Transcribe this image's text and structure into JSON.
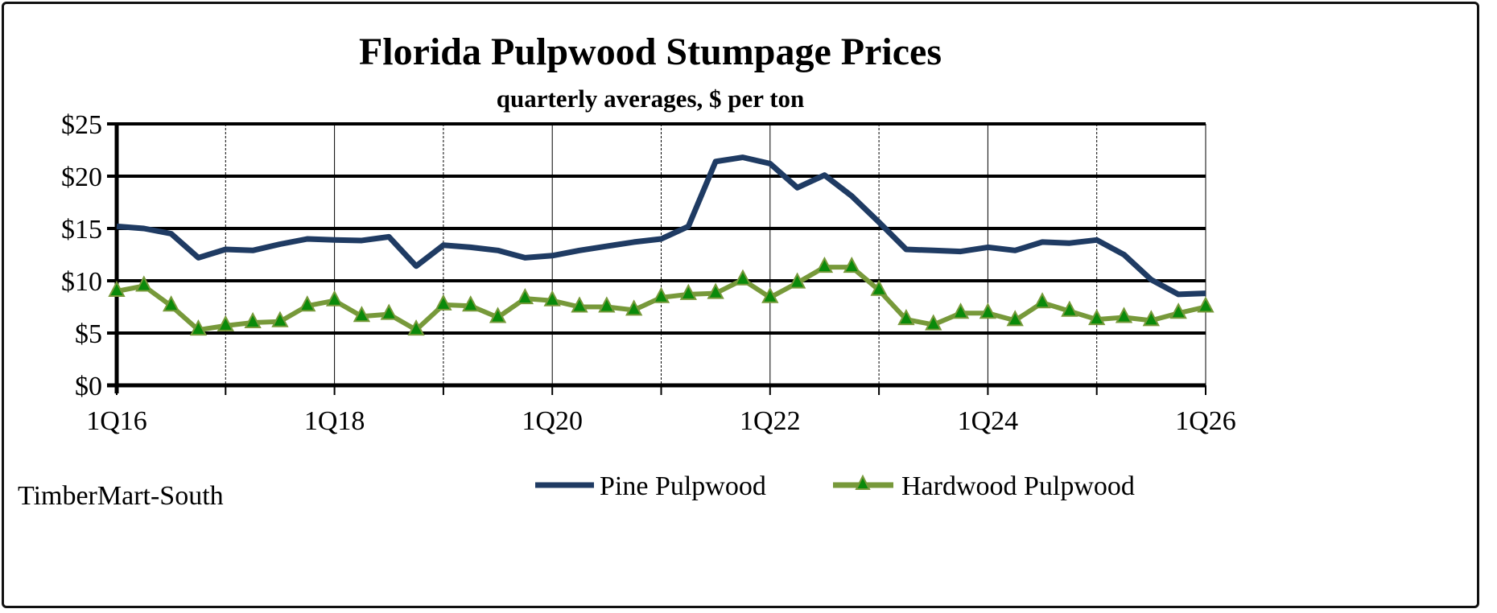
{
  "chart_data": {
    "type": "line",
    "title": "Florida Pulpwood Stumpage Prices",
    "subtitle": "quarterly averages, $ per ton",
    "source": "TimberMart-South",
    "xlabel": "",
    "ylabel": "",
    "ylim": [
      0,
      25
    ],
    "yticks": [
      0,
      5,
      10,
      15,
      20,
      25
    ],
    "ytick_labels": [
      "$0",
      "$5",
      "$10",
      "$15",
      "$20",
      "$25"
    ],
    "xtick_labels": [
      "1Q16",
      "1Q18",
      "1Q20",
      "1Q22",
      "1Q24",
      "1Q26"
    ],
    "grid": true,
    "legend_position": "bottom-right",
    "x": [
      "1Q16",
      "2Q16",
      "3Q16",
      "4Q16",
      "1Q17",
      "2Q17",
      "3Q17",
      "4Q17",
      "1Q18",
      "2Q18",
      "3Q18",
      "4Q18",
      "1Q19",
      "2Q19",
      "3Q19",
      "4Q19",
      "1Q20",
      "2Q20",
      "3Q20",
      "4Q20",
      "1Q21",
      "2Q21",
      "3Q21",
      "4Q21",
      "1Q22",
      "2Q22",
      "3Q22",
      "4Q22",
      "1Q23",
      "2Q23",
      "3Q23",
      "4Q23",
      "1Q24",
      "2Q24",
      "3Q24",
      "4Q24",
      "1Q25",
      "2Q25",
      "3Q25",
      "4Q25",
      "1Q26"
    ],
    "series": [
      {
        "name": "Pine Pulpwood",
        "color": "#1f3b63",
        "marker": "none",
        "values": [
          15.2,
          15.0,
          14.5,
          12.2,
          13.0,
          12.9,
          13.5,
          14.0,
          13.9,
          13.85,
          14.2,
          11.4,
          13.4,
          13.2,
          12.9,
          12.2,
          12.4,
          12.9,
          13.3,
          13.7,
          14.0,
          15.2,
          21.4,
          21.8,
          21.2,
          18.9,
          20.1,
          18.1,
          15.6,
          13.0,
          12.9,
          12.8,
          13.2,
          12.9,
          13.7,
          13.6,
          13.9,
          12.5,
          10.1,
          8.7,
          8.8
        ]
      },
      {
        "name": "Hardwood Pulpwood",
        "color": "#77993a",
        "marker": "triangle",
        "marker_color": "#0a8a0a",
        "values": [
          9.0,
          9.5,
          7.6,
          5.3,
          5.7,
          6.0,
          6.1,
          7.6,
          8.1,
          6.6,
          6.8,
          5.3,
          7.7,
          7.6,
          6.5,
          8.3,
          8.1,
          7.5,
          7.5,
          7.2,
          8.4,
          8.7,
          8.8,
          10.1,
          8.4,
          9.8,
          11.3,
          11.3,
          9.1,
          6.3,
          5.8,
          6.9,
          6.9,
          6.2,
          7.9,
          7.1,
          6.3,
          6.5,
          6.2,
          6.9,
          7.5
        ]
      }
    ]
  }
}
